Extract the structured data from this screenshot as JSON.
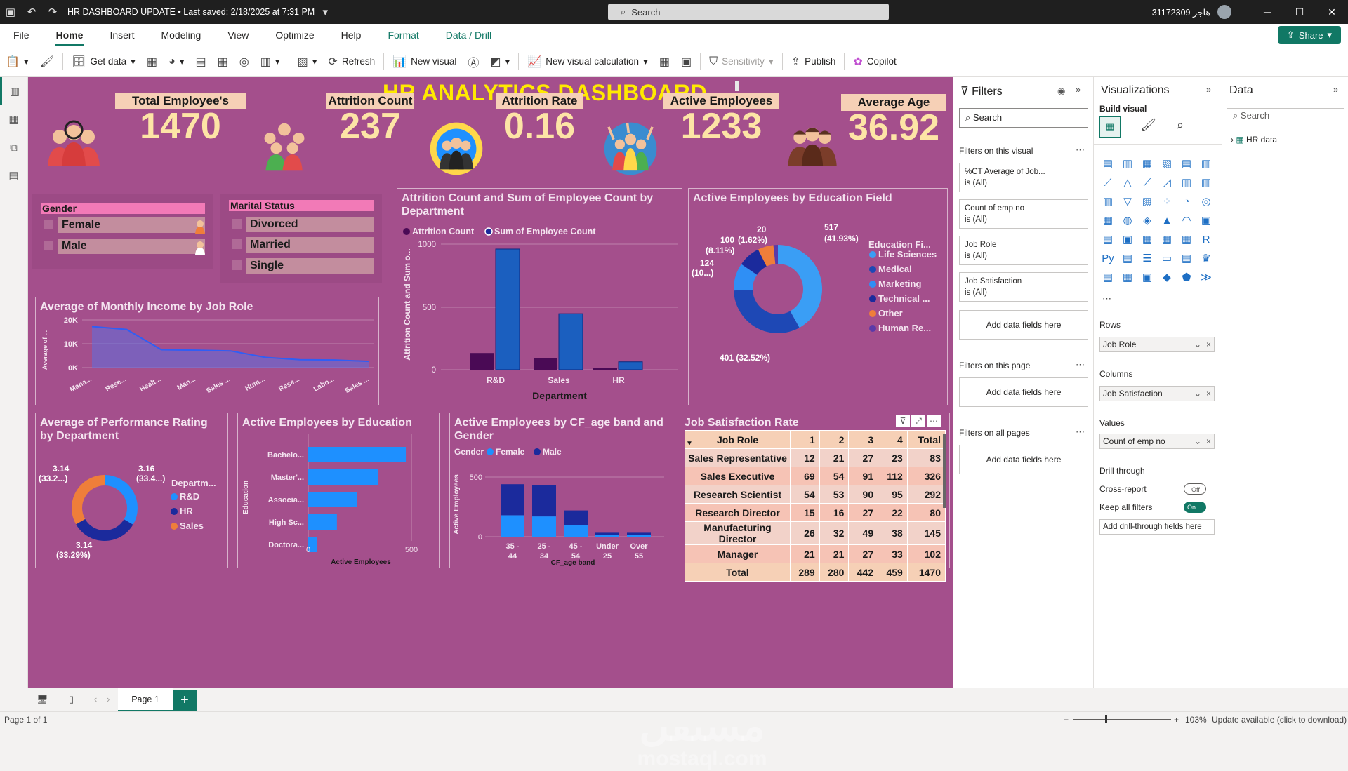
{
  "titlebar": {
    "title": "HR DASHBOARD UPDATE • Last saved: 2/18/2025 at 7:31 PM",
    "search": "Search",
    "user": "31172309 هاجر"
  },
  "menu": {
    "items": [
      "File",
      "Home",
      "Insert",
      "Modeling",
      "View",
      "Optimize",
      "Help",
      "Format",
      "Data / Drill"
    ],
    "share": "Share"
  },
  "ribbon": {
    "get_data": "Get data",
    "refresh": "Refresh",
    "new_visual": "New visual",
    "new_visual_calc": "New visual calculation",
    "sensitivity": "Sensitivity",
    "publish": "Publish",
    "copilot": "Copilot"
  },
  "dashboard": {
    "title": "HR ANALYTICS DASHBOARD",
    "kpis": [
      {
        "label": "Total Employee's",
        "value": "1470"
      },
      {
        "label": "Attrition Count",
        "value": "237"
      },
      {
        "label": "Attrition Rate",
        "value": "0.16"
      },
      {
        "label": "Active Employees",
        "value": "1233"
      },
      {
        "label": "Average Age",
        "value": "36.92"
      }
    ],
    "gender_slicer": {
      "header": "Gender",
      "items": [
        "Female",
        "Male"
      ]
    },
    "marital_slicer": {
      "header": "Marital Status",
      "items": [
        "Divorced",
        "Married",
        "Single"
      ]
    },
    "watermark": {
      "arabic": "مستقل",
      "latin": "mostaql.com"
    }
  },
  "charts": {
    "income": {
      "title": "Average of Monthly Income by Job Role",
      "ylabel": "Average of ...",
      "yticks": [
        "20K",
        "10K",
        "0K"
      ],
      "xticks": [
        "Mana...",
        "Rese...",
        "Healt...",
        "Man...",
        "Sales ...",
        "Hum...",
        "Rese...",
        "Labo...",
        "Sales ..."
      ]
    },
    "attrition": {
      "title": "Attrition Count and Sum of Employee Count by Department",
      "legend": [
        "Attrition Count",
        "Sum of Employee Count"
      ],
      "ylabel": "Attrition Count and Sum o...",
      "xlabel": "Department",
      "yticks": [
        "1000",
        "500",
        "0"
      ]
    },
    "edu_field": {
      "title": "Active Employees by Education Field",
      "legend_title": "Education Fi...",
      "labels": [
        "517 (41.93%)",
        "401 (32.52%)",
        "124 (10...)",
        "100 (8.11%)",
        "20 (1.62%)"
      ]
    },
    "perf": {
      "title": "Average of Performance Rating by Department",
      "legend_title": "Departm...",
      "labels": [
        "3.16 (33.4...)",
        "3.14 (33.29%)",
        "3.14 (33.2...)"
      ]
    },
    "education": {
      "title": "Active Employees by Education",
      "ylabel": "Education",
      "xlabel": "Active Employees",
      "xticks": [
        "0",
        "500"
      ]
    },
    "ageband": {
      "title": "Active Employees by CF_age band and Gender",
      "legend_title": "Gender",
      "legend": [
        "Female",
        "Male"
      ],
      "ylabel": "Active Employees",
      "xlabel": "CF_age band",
      "yticks": [
        "500",
        "0"
      ]
    },
    "jobsat": {
      "title": "Job Satisfaction Rate",
      "headers": [
        "Job Role",
        "1",
        "2",
        "3",
        "4",
        "Total"
      ],
      "rows": [
        [
          "Sales Representative",
          "12",
          "21",
          "27",
          "23",
          "83"
        ],
        [
          "Sales Executive",
          "69",
          "54",
          "91",
          "112",
          "326"
        ],
        [
          "Research Scientist",
          "54",
          "53",
          "90",
          "95",
          "292"
        ],
        [
          "Research Director",
          "15",
          "16",
          "27",
          "22",
          "80"
        ],
        [
          "Manufacturing Director",
          "26",
          "32",
          "49",
          "38",
          "145"
        ],
        [
          "Manager",
          "21",
          "21",
          "27",
          "33",
          "102"
        ]
      ],
      "total": [
        "Total",
        "289",
        "280",
        "442",
        "459",
        "1470"
      ]
    }
  },
  "chart_data": [
    {
      "type": "area",
      "title": "Average of Monthly Income by Job Role",
      "categories": [
        "Mana...",
        "Rese...",
        "Healt...",
        "Man...",
        "Sales ...",
        "Hum...",
        "Rese...",
        "Labo...",
        "Sales ..."
      ],
      "values": [
        17200,
        16000,
        7500,
        7300,
        7000,
        4300,
        3300,
        3200,
        2600
      ],
      "ylim": [
        0,
        20000
      ]
    },
    {
      "type": "bar",
      "title": "Attrition Count and Sum of Employee Count by Department",
      "categories": [
        "R&D",
        "Sales",
        "HR"
      ],
      "series": [
        {
          "name": "Attrition Count",
          "values": [
            133,
            92,
            12
          ]
        },
        {
          "name": "Sum of Employee Count",
          "values": [
            961,
            446,
            63
          ]
        }
      ],
      "ylim": [
        0,
        1000
      ]
    },
    {
      "type": "pie",
      "title": "Active Employees by Education Field",
      "categories": [
        "Life Sciences",
        "Medical",
        "Marketing",
        "Technical ...",
        "Other",
        "Human Re..."
      ],
      "values": [
        517,
        401,
        124,
        100,
        71,
        20
      ]
    },
    {
      "type": "pie",
      "title": "Average of Performance Rating by Department",
      "categories": [
        "R&D",
        "HR",
        "Sales"
      ],
      "values": [
        3.16,
        3.14,
        3.14
      ]
    },
    {
      "type": "bar",
      "title": "Active Employees by Education",
      "categories": [
        "Bachelo...",
        "Master'...",
        "Associa...",
        "High Sc...",
        "Doctora..."
      ],
      "values": [
        473,
        340,
        238,
        139,
        43
      ],
      "xlim": [
        0,
        560
      ]
    },
    {
      "type": "bar",
      "title": "Active Employees by CF_age band and Gender",
      "categories": [
        "35 - 44",
        "25 - 34",
        "45 - 54",
        "Under 25",
        "Over 55"
      ],
      "series": [
        {
          "name": "Female",
          "values": [
            180,
            170,
            100,
            15,
            15
          ]
        },
        {
          "name": "Male",
          "values": [
            260,
            265,
            120,
            18,
            18
          ]
        }
      ],
      "ylim": [
        0,
        600
      ]
    }
  ],
  "filters": {
    "title": "Filters",
    "search": "Search",
    "on_visual": "Filters on this visual",
    "cards": [
      [
        "%CT Average of Job...",
        "is (All)"
      ],
      [
        "Count of emp no",
        "is (All)"
      ],
      [
        "Job Role",
        "is (All)"
      ],
      [
        "Job Satisfaction",
        "is (All)"
      ]
    ],
    "add": "Add data fields here",
    "on_page": "Filters on this page",
    "on_all": "Filters on all pages"
  },
  "viz": {
    "title": "Visualizations",
    "build": "Build visual",
    "rows_label": "Rows",
    "rows": "Job Role",
    "cols_label": "Columns",
    "cols": "Job Satisfaction",
    "vals_label": "Values",
    "vals": "Count of emp no",
    "drill": "Drill through",
    "cross": "Cross-report",
    "keep": "Keep all filters",
    "off": "Off",
    "on": "On",
    "add_drill": "Add drill-through fields here"
  },
  "data": {
    "title": "Data",
    "search": "Search",
    "table": "HR data"
  },
  "pages": {
    "tab": "Page 1",
    "status": "Page 1 of 1",
    "zoom": "103%",
    "update": "Update available (click to download)"
  },
  "colors": {
    "canvas": "#a44f8c",
    "dark_purple": "#4a0a55",
    "navy": "#1b2a9c",
    "blue": "#1e90ff",
    "orange": "#ef7e3a",
    "accent": "#117865"
  }
}
